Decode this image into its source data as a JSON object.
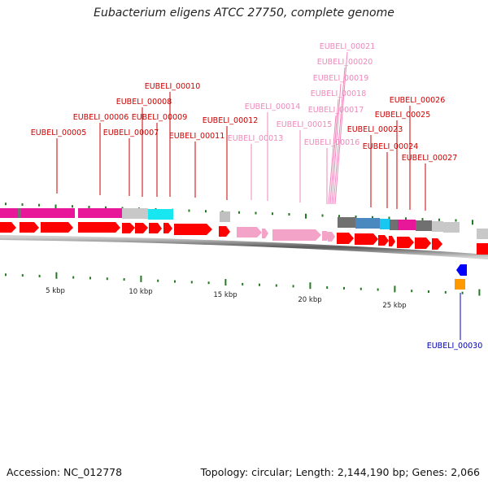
{
  "title": "Eubacterium eligens ATCC 27750, complete genome",
  "footer": {
    "accession": "Accession: NC_012778",
    "topology": "Topology: circular; Length: 2,144,190 bp; Genes: 2,066"
  },
  "colors": {
    "cds": "#ff0000",
    "cds_pink": "#f4a3c8",
    "label_red": "#cc0000",
    "label_pink": "#ee88bb",
    "label_blue": "#0000bb",
    "magenta": "#e8179a",
    "grey": "#c8c8c8",
    "dark_grey": "#707070",
    "cyan": "#18e6f0",
    "steel_blue": "#4a88c0",
    "blue": "#0000ff",
    "orange": "#ff9900",
    "tick_green": "#227a22"
  },
  "scale_labels": [
    "5 kbp",
    "10 kbp",
    "15 kbp",
    "20 kbp",
    "25 kbp"
  ],
  "gene_labels": [
    {
      "text": "EUBELI_00005",
      "color": "red"
    },
    {
      "text": "EUBELI_00006",
      "color": "red"
    },
    {
      "text": "EUBELI_00007",
      "color": "red"
    },
    {
      "text": "EUBELI_00008",
      "color": "red"
    },
    {
      "text": "EUBELI_00009",
      "color": "red"
    },
    {
      "text": "EUBELI_00010",
      "color": "red"
    },
    {
      "text": "EUBELI_00011",
      "color": "red"
    },
    {
      "text": "EUBELI_00012",
      "color": "red"
    },
    {
      "text": "EUBELI_00013",
      "color": "pink"
    },
    {
      "text": "EUBELI_00014",
      "color": "pink"
    },
    {
      "text": "EUBELI_00015",
      "color": "pink"
    },
    {
      "text": "EUBELI_00016",
      "color": "pink"
    },
    {
      "text": "EUBELI_00017",
      "color": "pink"
    },
    {
      "text": "EUBELI_00018",
      "color": "pink"
    },
    {
      "text": "EUBELI_00019",
      "color": "pink"
    },
    {
      "text": "EUBELI_00020",
      "color": "pink"
    },
    {
      "text": "EUBELI_00021",
      "color": "pink"
    },
    {
      "text": "EUBELI_00023",
      "color": "red"
    },
    {
      "text": "EUBELI_00024",
      "color": "red"
    },
    {
      "text": "EUBELI_00025",
      "color": "red"
    },
    {
      "text": "EUBELI_00026",
      "color": "red"
    },
    {
      "text": "EUBELI_00027",
      "color": "red"
    },
    {
      "text": "EUBELI_00030",
      "color": "blue"
    }
  ]
}
